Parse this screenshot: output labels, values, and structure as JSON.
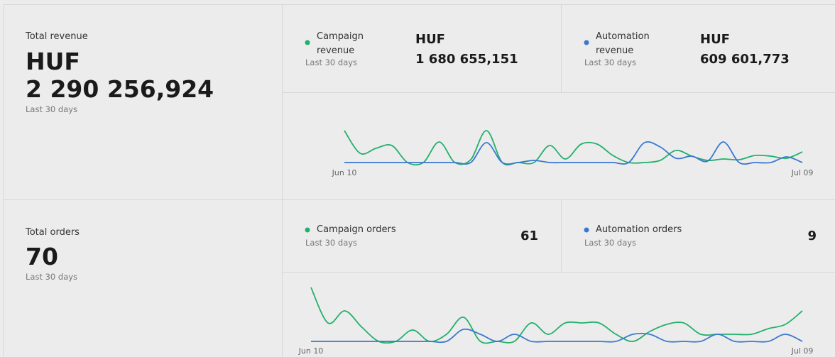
{
  "revenue": {
    "title": "Total revenue",
    "currency": "HUF",
    "value": "2 290 256,924",
    "period": "Last 30 days",
    "cards": [
      {
        "period": "Last 30 days",
        "currency": "HUF",
        "value": "1 680 655,151"
      },
      {
        "period": "Last 30 days",
        "currency": "HUF",
        "value": "609 601,773"
      }
    ]
  },
  "orders": {
    "title": "Total orders",
    "value": "70",
    "period": "Last 30 days",
    "cards": [
      {
        "period": "Last 30 days",
        "value": "61"
      },
      {
        "period": "Last 30 days",
        "value": "9"
      }
    ]
  },
  "chart_data": [
    {
      "type": "line",
      "categories": [
        "Jun 10",
        null,
        null,
        null,
        null,
        null,
        null,
        null,
        null,
        null,
        null,
        null,
        null,
        null,
        null,
        null,
        null,
        null,
        null,
        null,
        null,
        null,
        null,
        null,
        null,
        null,
        null,
        null,
        null,
        "Jul 09"
      ],
      "series": [
        {
          "name": "Campaign revenue",
          "color": "#22b06b",
          "values": [
            45,
            13,
            20,
            24,
            0,
            0,
            29,
            0,
            4,
            45,
            0,
            0,
            0,
            24,
            5,
            26,
            26,
            10,
            0,
            0,
            3,
            17,
            9,
            3,
            5,
            4,
            10,
            9,
            6,
            15
          ]
        },
        {
          "name": "Automation revenue",
          "color": "#3a78d0",
          "values": [
            0,
            0,
            0,
            0,
            0,
            0,
            0,
            0,
            0,
            28,
            0,
            0,
            3,
            0,
            0,
            0,
            0,
            0,
            0,
            28,
            22,
            6,
            9,
            2,
            29,
            0,
            0,
            0,
            8,
            0
          ]
        }
      ]
    },
    {
      "type": "line",
      "categories": [
        "Jun 10",
        null,
        null,
        null,
        null,
        null,
        null,
        null,
        null,
        null,
        null,
        null,
        null,
        null,
        null,
        null,
        null,
        null,
        null,
        null,
        null,
        null,
        null,
        null,
        null,
        null,
        null,
        null,
        null,
        "Jul 09"
      ],
      "series": [
        {
          "name": "Campaign orders",
          "color": "#22b06b",
          "values": [
            76,
            26,
            43,
            20,
            0,
            0,
            16,
            0,
            10,
            34,
            0,
            0,
            0,
            26,
            10,
            26,
            26,
            26,
            10,
            0,
            14,
            24,
            26,
            10,
            10,
            10,
            10,
            18,
            24,
            43
          ]
        },
        {
          "name": "Automation orders",
          "color": "#3a78d0",
          "values": [
            0,
            0,
            0,
            0,
            0,
            0,
            0,
            0,
            0,
            17,
            10,
            0,
            10,
            0,
            0,
            0,
            0,
            0,
            0,
            10,
            10,
            0,
            0,
            0,
            10,
            0,
            0,
            0,
            10,
            0
          ]
        }
      ]
    }
  ]
}
